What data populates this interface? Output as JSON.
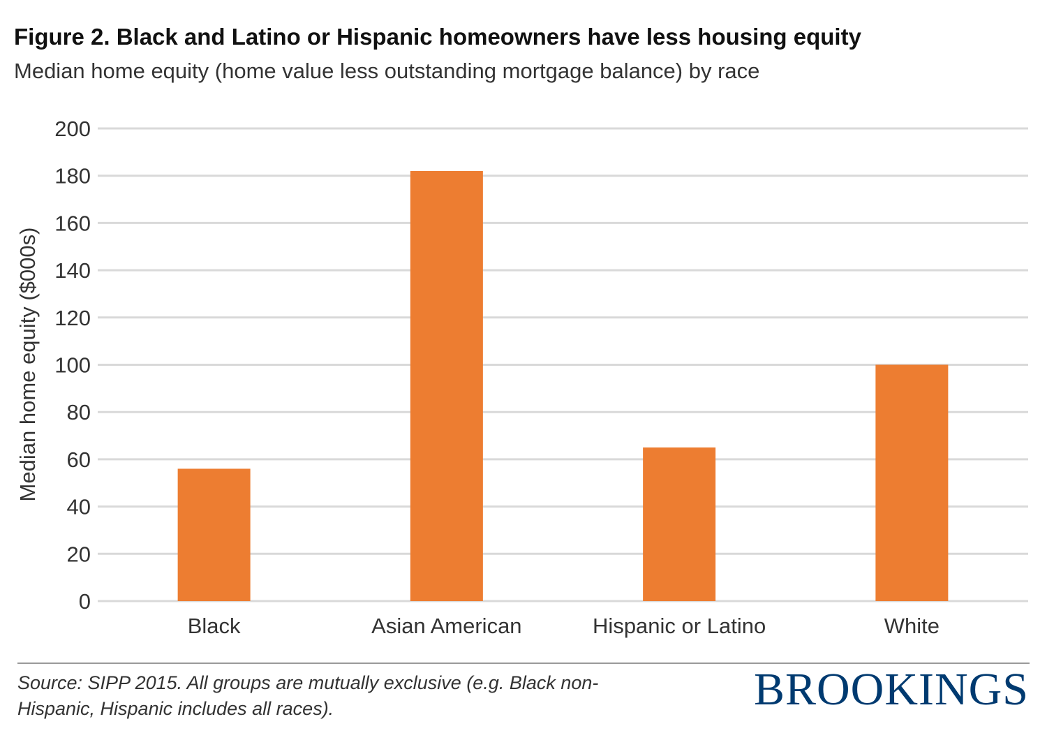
{
  "title": "Figure 2. Black and Latino or Hispanic homeowners have less housing equity",
  "subtitle": "Median home equity (home value less outstanding mortgage balance) by race",
  "source": "Source: SIPP 2015. All groups are mutually exclusive (e.g. Black non-Hispanic, Hispanic includes all races).",
  "brand": "BROOKINGS",
  "colors": {
    "bar": "#ed7d31",
    "grid": "#d9d9d9",
    "brand": "#003a70"
  },
  "chart_data": {
    "type": "bar",
    "categories": [
      "Black",
      "Asian American",
      "Hispanic or Latino",
      "White"
    ],
    "values": [
      56,
      182,
      65,
      100
    ],
    "ylabel": "Median home equity ($000s)",
    "ylim": [
      0,
      200
    ],
    "yticks": [
      0,
      20,
      40,
      60,
      80,
      100,
      120,
      140,
      160,
      180,
      200
    ],
    "grid": true,
    "legend": "none"
  }
}
